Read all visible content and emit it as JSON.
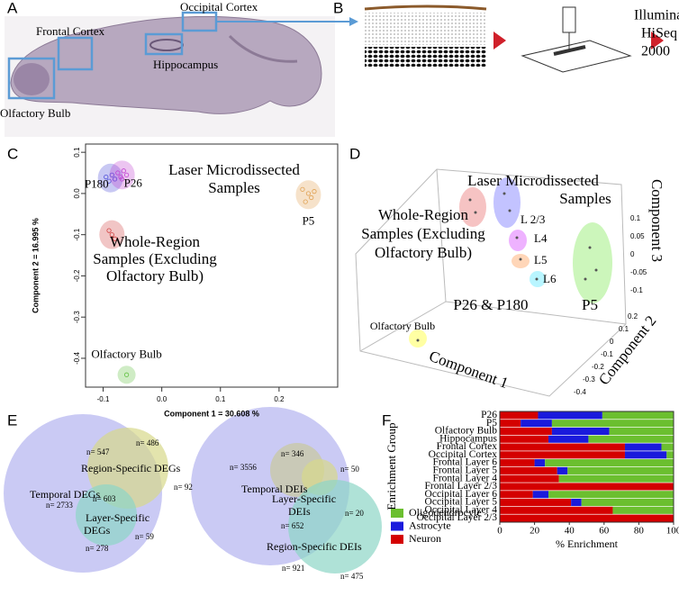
{
  "panel_labels": [
    "A",
    "B",
    "C",
    "D",
    "E",
    "F"
  ],
  "panel_a": {
    "regions": [
      "Occipital Cortex",
      "Frontal Cortex",
      "Hippocampus",
      "Olfactory Bulb"
    ]
  },
  "panel_b": {
    "instrument": [
      "Illumina",
      "HiSeq",
      "2000"
    ]
  },
  "panel_d": {
    "annotations": [
      "Laser Microdissected",
      "Samples",
      "Whole-Region",
      "Samples (Excluding",
      "Olfactory Bulb)",
      "L 2/3",
      "L4",
      "L5",
      "L6",
      "P26 & P180",
      "P5",
      "Olfactory Bulb"
    ],
    "axis_labels": [
      "Component 1",
      "Component 2",
      "Component 3"
    ],
    "component3_ticks": [
      "0.1",
      "0.05",
      "0",
      "-0.05",
      "-0.1"
    ],
    "component2_ticks": [
      "0.2",
      "0.1",
      "0",
      "-0.1",
      "-0.2",
      "-0.3",
      "-0.4"
    ]
  },
  "panel_e": {
    "left": [
      "n= 547",
      "n= 486",
      "Region-Specific DEGs",
      "n= 92",
      "Temporal DEGs",
      "n= 2733",
      "n= 603",
      "Layer-Specific",
      "DEGs",
      "n= 278",
      "n= 59"
    ],
    "right": [
      "n= 3556",
      "n= 346",
      "n= 50",
      "Temporal DEIs",
      "Layer-Specific",
      "DEIs",
      "n= 652",
      "n= 20",
      "Region-Specific DEIs",
      "n= 921",
      "n= 475"
    ]
  },
  "chart_data": [
    {
      "type": "scatter",
      "xlabel": "Component 1 = 30.608 %",
      "ylabel": "Component 2 = 16.995 %",
      "xlim": [
        -0.13,
        0.3
      ],
      "ylim": [
        -0.47,
        0.12
      ],
      "xticks": [
        -0.1,
        {
          "value": 0,
          "label": "0.0"
        },
        0.1,
        0.2
      ],
      "yticks": [
        0.1,
        {
          "value": 0,
          "label": "0.0"
        },
        -0.1,
        -0.2,
        -0.3,
        -0.4
      ],
      "annotations": [
        "Laser Microdissected",
        "Samples",
        "Whole-Region",
        "Samples (Excluding",
        "Olfactory Bulb)"
      ],
      "series": [
        {
          "name": "P180",
          "color": "#4a4ad8",
          "x": [
            -0.095,
            -0.09,
            -0.085,
            -0.08
          ],
          "y": [
            0.04,
            0.03,
            0.045,
            0.035
          ]
        },
        {
          "name": "P26",
          "color": "#c040d0",
          "x": [
            -0.075,
            -0.07,
            -0.065,
            -0.068,
            -0.06
          ],
          "y": [
            0.05,
            0.04,
            0.055,
            0.035,
            0.045
          ]
        },
        {
          "color": "#d04040",
          "x": [
            -0.09,
            -0.085,
            -0.08
          ],
          "y": [
            -0.09,
            -0.1,
            -0.11
          ]
        },
        {
          "name": "P5",
          "color": "#e0a050",
          "x": [
            0.24,
            0.25,
            0.26,
            0.255,
            0.245
          ],
          "y": [
            0.01,
            0.0,
            0.005,
            -0.01,
            -0.02
          ]
        },
        {
          "name": "Olfactory Bulb",
          "color": "#60c040",
          "x": [
            -0.06
          ],
          "y": [
            -0.44
          ]
        }
      ]
    },
    {
      "type": "stacked-barh",
      "xlabel": "% Enrichment",
      "ylabel": "Enrichment Group",
      "xlim": [
        0,
        100
      ],
      "xticks": [
        0,
        20,
        40,
        60,
        80,
        100
      ],
      "categories": [
        "P26",
        "P5",
        "Olfactory Bulb",
        "Hippocampus",
        "Frontal Cortex",
        "Occipital Cortex",
        "Frontal Layer 6",
        "Frontal Layer 5",
        "Frontal Layer 4",
        "Frontal Layer 2/3",
        "Occipital Layer 6",
        "Occipital Layer 5",
        "Occipital Layer 4",
        "Occipital Layer 2/3"
      ],
      "series": [
        {
          "name": "Neuron",
          "color": "#d40000",
          "values": [
            22,
            12,
            30,
            28,
            72,
            72,
            20,
            33,
            34,
            100,
            19,
            41,
            65,
            100
          ]
        },
        {
          "name": "Astrocyte",
          "color": "#1a1adc",
          "values": [
            37,
            18,
            33,
            23,
            21,
            24,
            6,
            6,
            0,
            0,
            9,
            6,
            0,
            0
          ]
        },
        {
          "name": "Oligodendrocyte",
          "color": "#6bbf2f",
          "values": [
            41,
            70,
            37,
            49,
            7,
            4,
            74,
            61,
            66,
            0,
            72,
            53,
            35,
            0
          ]
        }
      ]
    }
  ]
}
